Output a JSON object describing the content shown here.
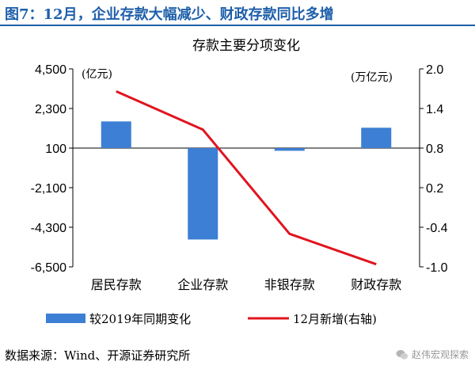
{
  "figure_title": "图7：12月，企业存款大幅减少、财政存款同比多增",
  "source_note": "数据来源：Wind、开源证券研究所",
  "watermark": "赵伟宏观探索",
  "watermark_icon": "wechat-icon",
  "colors": {
    "bar": "#3d7fd4",
    "line": "#e0141e",
    "title": "#1e5faa"
  },
  "chart_data": {
    "type": "bar+line",
    "title": "存款主要分项变化",
    "categories": [
      "居民存款",
      "企业存款",
      "非银存款",
      "财政存款"
    ],
    "left_axis": {
      "unit": "(亿元)",
      "ylim": [
        -6500,
        4500
      ],
      "ticks": [
        4500,
        2300,
        100,
        -2100,
        -4300,
        -6500
      ],
      "tick_labels": [
        "4,500",
        "2,300",
        "100",
        "-2,100",
        "-4,300",
        "-6,500"
      ]
    },
    "right_axis": {
      "unit": "(万亿元)",
      "ylim": [
        -1.0,
        2.0
      ],
      "ticks": [
        2.0,
        1.4,
        0.8,
        0.2,
        -0.4,
        -1.0
      ],
      "tick_labels": [
        "2.0",
        "1.4",
        "0.8",
        "0.2",
        "-0.4",
        "-1.0"
      ]
    },
    "series": [
      {
        "name": "较2019年同期变化",
        "type": "bar",
        "axis": "left",
        "values": [
          1580,
          -4980,
          -50,
          1230
        ]
      },
      {
        "name": "12月新增(右轴)",
        "type": "line",
        "axis": "right",
        "values": [
          1.66,
          1.08,
          -0.5,
          -0.96
        ]
      }
    ],
    "legend_position": "bottom",
    "grid": false
  }
}
